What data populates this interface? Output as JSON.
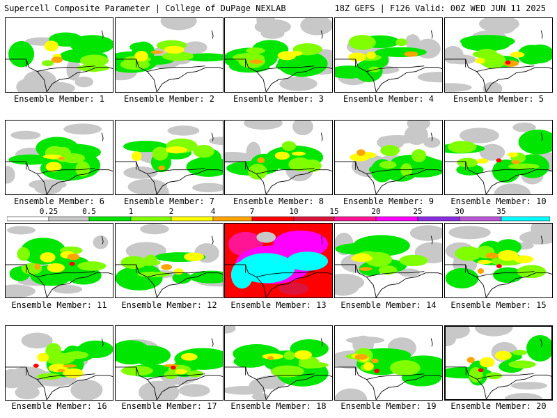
{
  "header": {
    "left": "Supercell Composite Parameter | College of DuPage NEXLAB",
    "right": "18Z GEFS | F126 Valid: 00Z WED JUN 11 2025"
  },
  "member_prefix": "Ensemble Member: ",
  "members": [
    {
      "number": "1",
      "intensity": 0.55
    },
    {
      "number": "2",
      "intensity": 0.55
    },
    {
      "number": "3",
      "intensity": 0.45
    },
    {
      "number": "4",
      "intensity": 0.55
    },
    {
      "number": "5",
      "intensity": 0.6
    },
    {
      "number": "6",
      "intensity": 0.5
    },
    {
      "number": "7",
      "intensity": 0.55
    },
    {
      "number": "8",
      "intensity": 0.45
    },
    {
      "number": "9",
      "intensity": 0.5
    },
    {
      "number": "10",
      "intensity": 0.6
    },
    {
      "number": "11",
      "intensity": 0.65
    },
    {
      "number": "12",
      "intensity": 0.55
    },
    {
      "number": "13",
      "intensity": 1.0
    },
    {
      "number": "14",
      "intensity": 0.55
    },
    {
      "number": "15",
      "intensity": 0.7
    },
    {
      "number": "16",
      "intensity": 0.65
    },
    {
      "number": "17",
      "intensity": 0.6
    },
    {
      "number": "18",
      "intensity": 0.55
    },
    {
      "number": "19",
      "intensity": 0.65
    },
    {
      "number": "20",
      "intensity": 0.6
    }
  ],
  "selected_member": "20",
  "colorbar": {
    "ticks": [
      "0.25",
      "0.5",
      "1",
      "2",
      "4",
      "7",
      "10",
      "15",
      "20",
      "25",
      "30",
      "35"
    ],
    "colors": [
      "#ffffff",
      "#c8c8c8",
      "#00e600",
      "#7fff00",
      "#ffff00",
      "#ffa500",
      "#ff0000",
      "#dc143c",
      "#ff1493",
      "#ff00ff",
      "#8a2be2",
      "#ba55d3",
      "#00ffff"
    ]
  }
}
